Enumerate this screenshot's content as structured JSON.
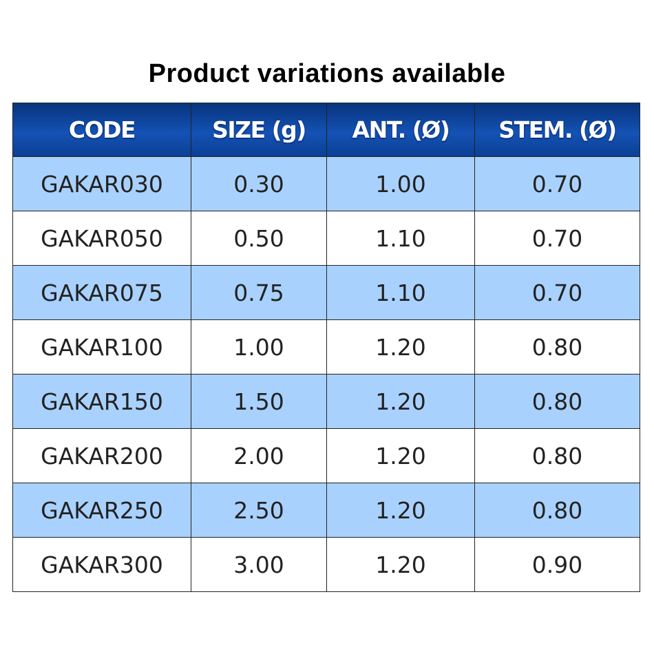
{
  "title": "Product variations available",
  "table": {
    "header": [
      "CODE",
      "SIZE (g)",
      "ANT. (Ø)",
      "STEM. (Ø)"
    ],
    "rows": [
      [
        "GAKAR030",
        "0.30",
        "1.00",
        "0.70"
      ],
      [
        "GAKAR050",
        "0.50",
        "1.10",
        "0.70"
      ],
      [
        "GAKAR075",
        "0.75",
        "1.10",
        "0.70"
      ],
      [
        "GAKAR100",
        "1.00",
        "1.20",
        "0.80"
      ],
      [
        "GAKAR150",
        "1.50",
        "1.20",
        "0.80"
      ],
      [
        "GAKAR200",
        "2.00",
        "1.20",
        "0.80"
      ],
      [
        "GAKAR250",
        "2.50",
        "1.20",
        "0.80"
      ],
      [
        "GAKAR300",
        "3.00",
        "1.20",
        "0.90"
      ]
    ]
  }
}
